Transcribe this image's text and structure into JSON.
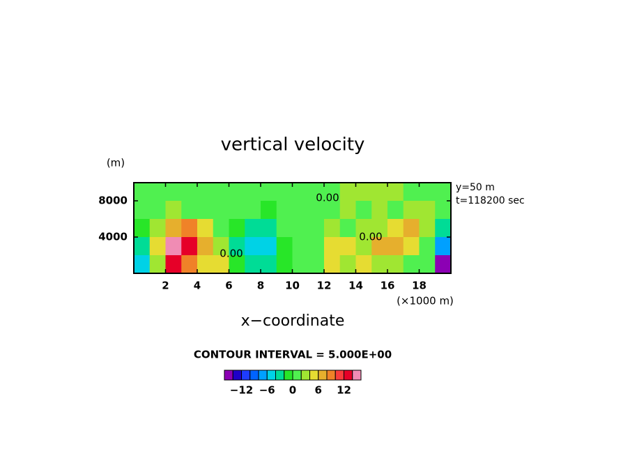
{
  "chart_data": {
    "type": "heatmap",
    "title": "vertical velocity",
    "y_unit": "(m)",
    "x_unit": "(×1000 m)",
    "x_label": "x−coordinate",
    "info": [
      "y=50 m",
      "t=118200 sec"
    ],
    "contour_interval": "CONTOUR INTERVAL = 5.000E+00",
    "annotations": [
      "0.00",
      "0.00",
      "0.00"
    ],
    "xlim": [
      0,
      20
    ],
    "ylim": [
      0,
      10000
    ],
    "xticks": [
      2,
      4,
      6,
      8,
      10,
      12,
      14,
      16,
      18
    ],
    "yticks": [
      4000,
      8000
    ],
    "z": [
      [
        0,
        1,
        1,
        0,
        1,
        1,
        0,
        1,
        1,
        1,
        0,
        1,
        1,
        2,
        2,
        3,
        2,
        1,
        1,
        0
      ],
      [
        0,
        1,
        2,
        1,
        1,
        0,
        0,
        1,
        -1,
        0,
        1,
        0,
        1,
        2,
        1,
        2,
        1,
        2,
        3,
        1
      ],
      [
        -1,
        3,
        7,
        8,
        4,
        1,
        -2,
        -4,
        -3,
        0,
        1,
        1,
        2,
        1,
        2,
        3,
        5,
        6,
        3,
        -3
      ],
      [
        -3,
        5,
        15,
        13,
        6,
        3,
        -4,
        -6,
        -5,
        -1,
        0,
        1,
        5,
        4,
        3,
        6,
        7,
        4,
        0,
        -8
      ],
      [
        -6,
        3,
        12,
        9,
        4,
        5,
        -2,
        -3,
        -4,
        -2,
        0,
        1,
        4,
        2,
        5,
        3,
        3,
        1,
        0,
        -15
      ]
    ],
    "colorbar": {
      "levels": [
        -16,
        -14,
        -12,
        -10,
        -8,
        -6,
        -4,
        -2,
        0,
        2,
        4,
        6,
        8,
        10,
        12,
        14,
        16
      ],
      "colors": [
        "#8c00b4",
        "#1e00c8",
        "#1e3cff",
        "#0064ff",
        "#00a0ff",
        "#00d2e6",
        "#00dc96",
        "#28e628",
        "#50f050",
        "#a0e632",
        "#e6dc32",
        "#e6af2d",
        "#f08228",
        "#fa3c3c",
        "#e60028",
        "#f08cb4"
      ],
      "ticks": [
        {
          "value": -12,
          "label": "−12"
        },
        {
          "value": -6,
          "label": "−6"
        },
        0,
        6,
        12
      ]
    }
  }
}
